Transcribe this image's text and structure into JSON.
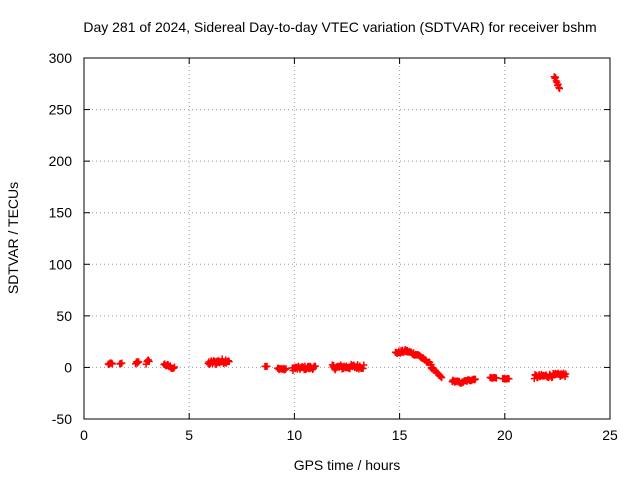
{
  "chart_data": {
    "type": "scatter",
    "title": "Day 281 of 2024, Sidereal Day-to-day VTEC variation (SDTVAR) for receiver bshm",
    "xlabel": "GPS time / hours",
    "ylabel": "SDTVAR / TECUs",
    "xlim": [
      0,
      25
    ],
    "ylim": [
      -50,
      300
    ],
    "xticks": [
      0,
      5,
      10,
      15,
      20,
      25
    ],
    "yticks": [
      -50,
      0,
      50,
      100,
      150,
      200,
      250,
      300
    ],
    "grid": true,
    "marker": "+",
    "color": "#ff0000",
    "segments": [
      {
        "x0": 1.15,
        "x1": 1.35,
        "y0": 3,
        "y1": 4,
        "spread": 2
      },
      {
        "x0": 1.7,
        "x1": 1.8,
        "y0": 3,
        "y1": 4,
        "spread": 1
      },
      {
        "x0": 2.45,
        "x1": 2.6,
        "y0": 4,
        "y1": 6,
        "spread": 3
      },
      {
        "x0": 2.95,
        "x1": 3.1,
        "y0": 4,
        "y1": 7,
        "spread": 3
      },
      {
        "x0": 3.8,
        "x1": 4.3,
        "y0": 3,
        "y1": -1,
        "spread": 3
      },
      {
        "x0": 5.9,
        "x1": 6.9,
        "y0": 4,
        "y1": 7,
        "spread": 5
      },
      {
        "x0": 8.6,
        "x1": 8.7,
        "y0": 1,
        "y1": 1,
        "spread": 0
      },
      {
        "x0": 9.2,
        "x1": 9.6,
        "y0": -1,
        "y1": -2,
        "spread": 2
      },
      {
        "x0": 9.9,
        "x1": 11.0,
        "y0": -1,
        "y1": 0,
        "spread": 4
      },
      {
        "x0": 11.8,
        "x1": 13.3,
        "y0": 0,
        "y1": 1,
        "spread": 5
      },
      {
        "x0": 14.8,
        "x1": 15.3,
        "y0": 14,
        "y1": 16,
        "spread": 3
      },
      {
        "x0": 15.3,
        "x1": 16.0,
        "y0": 16,
        "y1": 11,
        "spread": 3
      },
      {
        "x0": 16.0,
        "x1": 16.5,
        "y0": 10,
        "y1": 3,
        "spread": 2
      },
      {
        "x0": 16.5,
        "x1": 17.0,
        "y0": 0,
        "y1": -10,
        "spread": 2
      },
      {
        "x0": 17.5,
        "x1": 18.0,
        "y0": -13,
        "y1": -15,
        "spread": 2
      },
      {
        "x0": 18.0,
        "x1": 18.6,
        "y0": -14,
        "y1": -11,
        "spread": 2
      },
      {
        "x0": 19.3,
        "x1": 19.6,
        "y0": -10,
        "y1": -10,
        "spread": 1
      },
      {
        "x0": 19.9,
        "x1": 20.2,
        "y0": -11,
        "y1": -11,
        "spread": 1
      },
      {
        "x0": 21.4,
        "x1": 22.9,
        "y0": -9,
        "y1": -7,
        "spread": 4
      },
      {
        "x0": 22.35,
        "x1": 22.6,
        "y0": 283,
        "y1": 270,
        "spread": 3
      }
    ]
  }
}
